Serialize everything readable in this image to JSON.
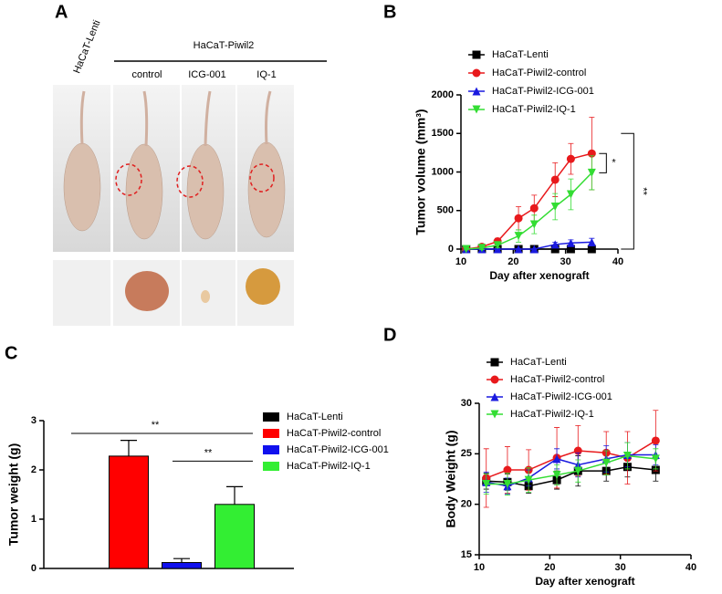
{
  "panel_labels": [
    "A",
    "B",
    "C",
    "D"
  ],
  "photo_panel": {
    "group_label": "HaCaT-Lenti",
    "treatment_group": "HaCaT-Piwil2",
    "columns": [
      "control",
      "ICG-001",
      "IQ-1"
    ]
  },
  "chart_data": [
    {
      "type": "line",
      "ylabel": "Tumor volume (mm³)",
      "xlabel": "Day after xenograft",
      "x": [
        11,
        14,
        17,
        21,
        24,
        28,
        31,
        35
      ],
      "xlim": [
        10,
        40
      ],
      "xticks": [
        10,
        20,
        30,
        40
      ],
      "ylim": [
        0,
        2000
      ],
      "yticks": [
        0,
        500,
        1000,
        1500,
        2000
      ],
      "series": [
        {
          "name": "HaCaT-Lenti",
          "color": "#000000",
          "marker": "square",
          "values": [
            0,
            0,
            0,
            0,
            0,
            0,
            0,
            0
          ],
          "errors": [
            5,
            5,
            5,
            5,
            5,
            5,
            5,
            5
          ]
        },
        {
          "name": "HaCaT-Piwil2-control",
          "color": "#e8191c",
          "marker": "circle",
          "values": [
            0,
            30,
            100,
            400,
            530,
            900,
            1170,
            1240
          ],
          "errors": [
            10,
            20,
            40,
            150,
            170,
            220,
            200,
            470
          ]
        },
        {
          "name": "HaCaT-Piwil2-ICG-001",
          "color": "#1a1adf",
          "marker": "triangle",
          "values": [
            0,
            0,
            0,
            0,
            0,
            60,
            80,
            90
          ],
          "errors": [
            5,
            5,
            5,
            5,
            5,
            30,
            40,
            50
          ]
        },
        {
          "name": "HaCaT-Piwil2-IQ-1",
          "color": "#33dd33",
          "marker": "triangle-down",
          "values": [
            0,
            15,
            50,
            170,
            320,
            550,
            710,
            990
          ],
          "errors": [
            10,
            20,
            30,
            80,
            120,
            170,
            200,
            220
          ]
        }
      ],
      "annotations": [
        "*",
        "**"
      ]
    },
    {
      "type": "bar",
      "ylabel": "Tumor weight (g)",
      "categories": [
        null
      ],
      "ylim": [
        0,
        3
      ],
      "yticks": [
        0,
        1,
        2,
        3
      ],
      "series": [
        {
          "name": "HaCaT-Lenti",
          "color": "#000000",
          "values": [
            0
          ],
          "errors": [
            0
          ]
        },
        {
          "name": "HaCaT-Piwil2-control",
          "color": "#ff0000",
          "values": [
            2.28
          ],
          "errors": [
            0.32
          ]
        },
        {
          "name": "HaCaT-Piwil2-ICG-001",
          "color": "#1010ee",
          "values": [
            0.12
          ],
          "errors": [
            0.08
          ]
        },
        {
          "name": "HaCaT-Piwil2-IQ-1",
          "color": "#33ee33",
          "values": [
            1.3
          ],
          "errors": [
            0.36
          ]
        }
      ],
      "annotations": [
        "**",
        "**"
      ]
    },
    {
      "type": "line",
      "ylabel": "Body Weight (g)",
      "xlabel": "Day after xenograft",
      "x": [
        11,
        14,
        17,
        21,
        24,
        28,
        31,
        35
      ],
      "xlim": [
        10,
        40
      ],
      "xticks": [
        10,
        20,
        30,
        40
      ],
      "ylim": [
        15,
        30
      ],
      "yticks": [
        15,
        20,
        25,
        30
      ],
      "series": [
        {
          "name": "HaCaT-Lenti",
          "color": "#000000",
          "marker": "square",
          "values": [
            22.3,
            22.2,
            21.8,
            22.4,
            23.3,
            23.3,
            23.7,
            23.4
          ],
          "errors": [
            0.8,
            0.8,
            0.7,
            0.9,
            1.5,
            1,
            1,
            1.1
          ]
        },
        {
          "name": "HaCaT-Piwil2-control",
          "color": "#e8191c",
          "marker": "circle",
          "values": [
            22.6,
            23.4,
            23.4,
            24.6,
            25.3,
            25.1,
            24.6,
            26.3
          ],
          "errors": [
            2.9,
            2.3,
            2,
            3,
            2.5,
            2.1,
            2.6,
            3
          ]
        },
        {
          "name": "HaCaT-Piwil2-ICG-001",
          "color": "#1a1adf",
          "marker": "triangle",
          "values": [
            22.2,
            21.8,
            22.6,
            24.5,
            23.9,
            24.5,
            24.9,
            24.9
          ],
          "errors": [
            1,
            0.8,
            0.8,
            1,
            1.2,
            1.3,
            1.2,
            1
          ]
        },
        {
          "name": "HaCaT-Piwil2-IQ-1",
          "color": "#33dd33",
          "marker": "triangle-down",
          "values": [
            22,
            22,
            22.4,
            22.9,
            23.3,
            24.1,
            24.8,
            24.5
          ],
          "errors": [
            1,
            1.1,
            1.2,
            1,
            1.1,
            1.2,
            1.3,
            1
          ]
        }
      ]
    }
  ]
}
